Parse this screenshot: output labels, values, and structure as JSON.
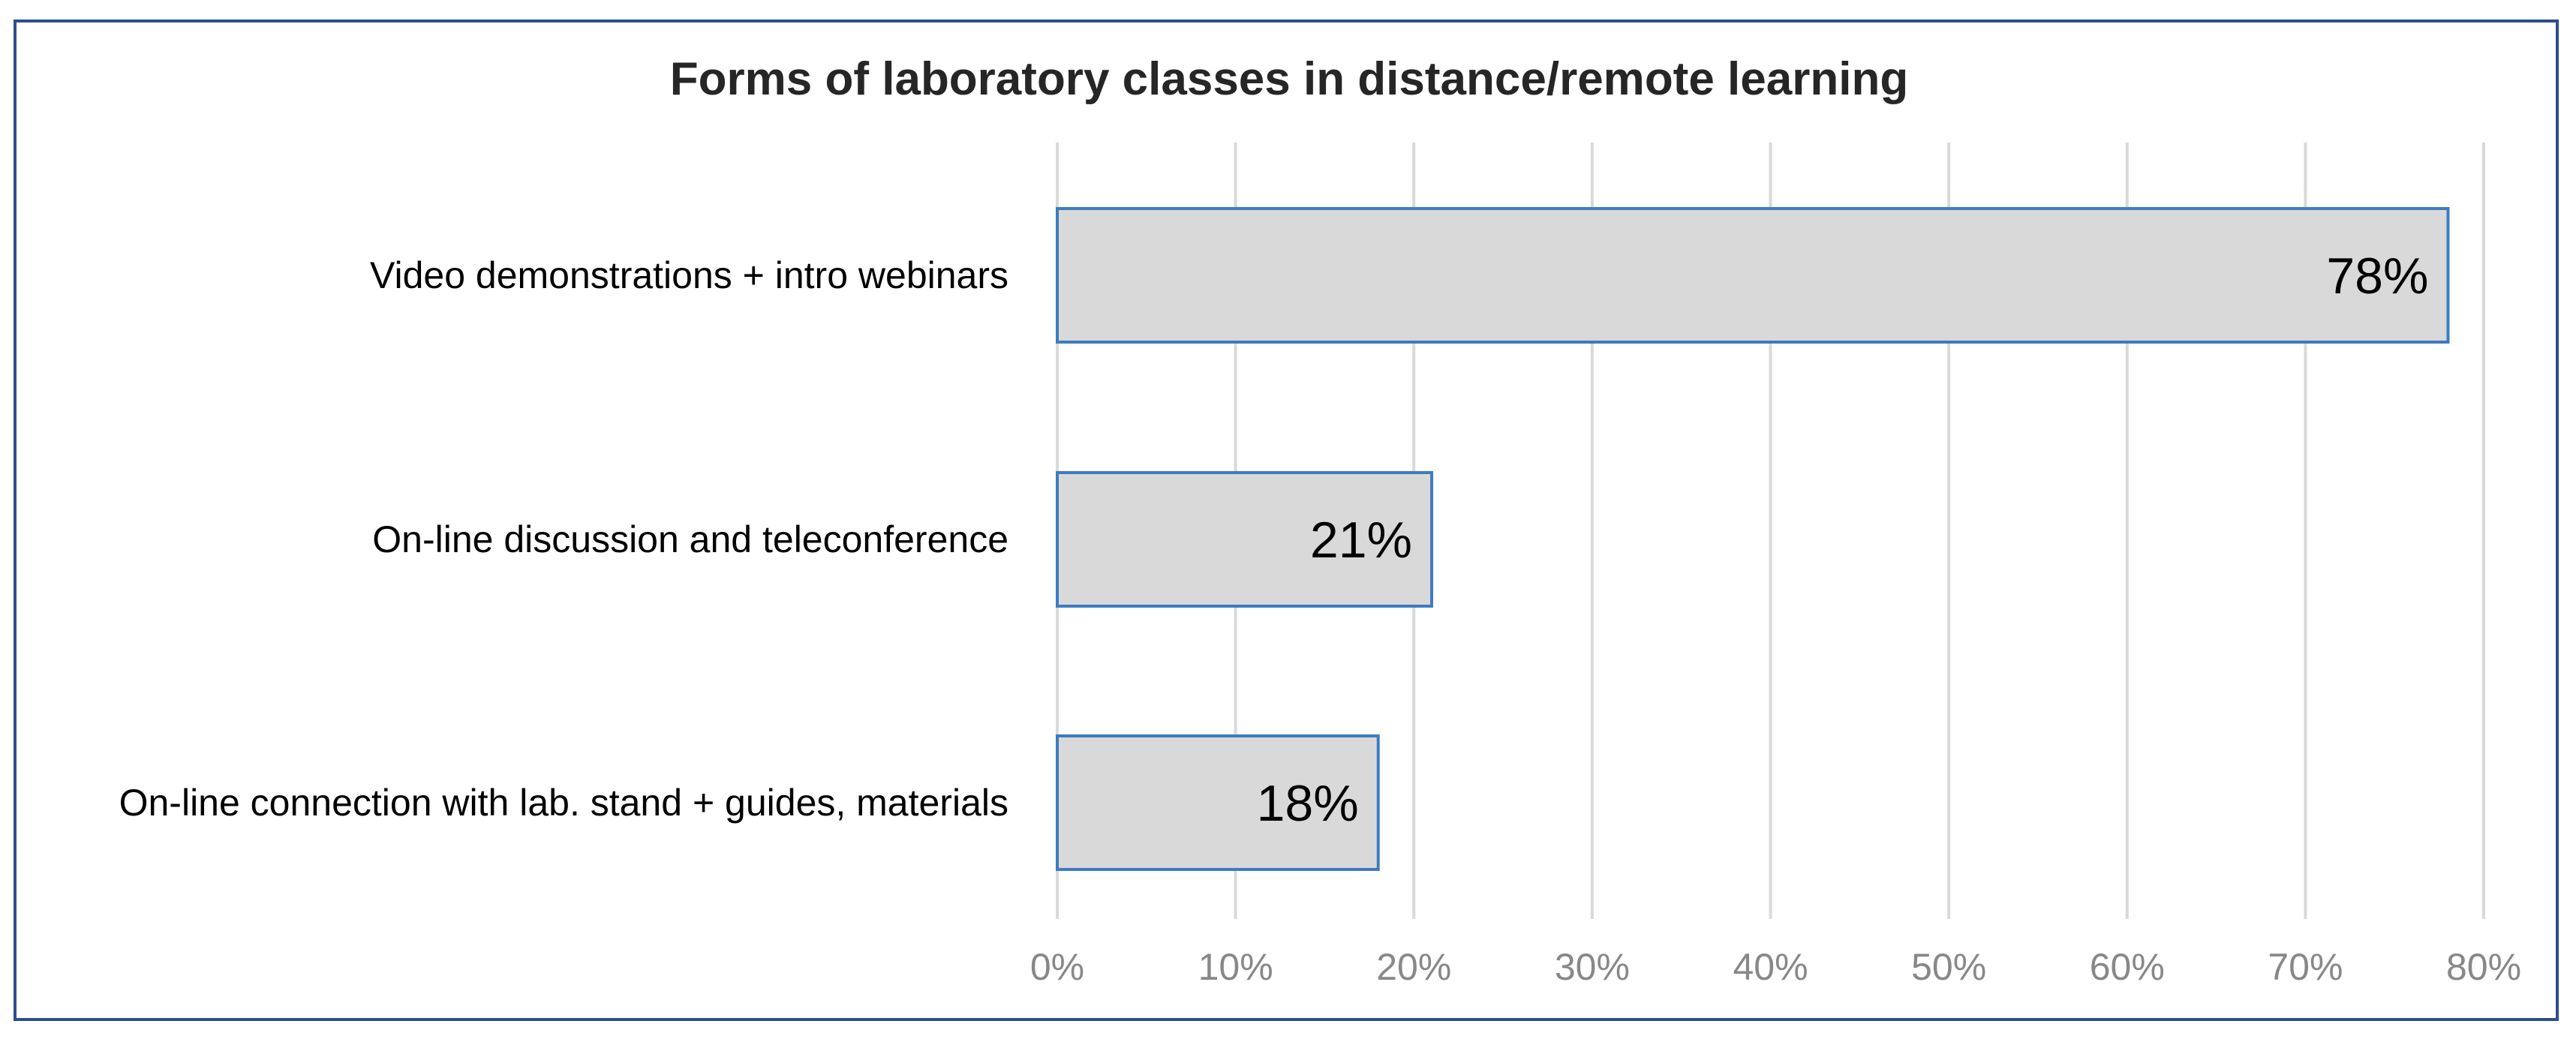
{
  "chart_data": {
    "type": "bar",
    "orientation": "horizontal",
    "title": "Forms of laboratory classes in distance/remote learning",
    "categories": [
      "Video demonstrations + intro webinars",
      "On-line discussion and teleconference",
      "On-line connection with lab. stand + guides, materials"
    ],
    "values": [
      78,
      21,
      18
    ],
    "data_labels": [
      "78%",
      "21%",
      "18%"
    ],
    "xlim": [
      0,
      80
    ],
    "x_ticks": [
      0,
      10,
      20,
      30,
      40,
      50,
      60,
      70,
      80
    ],
    "x_tick_labels": [
      "0%",
      "10%",
      "20%",
      "30%",
      "40%",
      "50%",
      "60%",
      "70%",
      "80%"
    ],
    "grid": true,
    "legend": "none",
    "colors": {
      "bar_fill": "#d9d9d9",
      "bar_stroke": "#3d7cc0",
      "grid": "#d9d9d9",
      "frame": "#2e4e8c"
    }
  }
}
